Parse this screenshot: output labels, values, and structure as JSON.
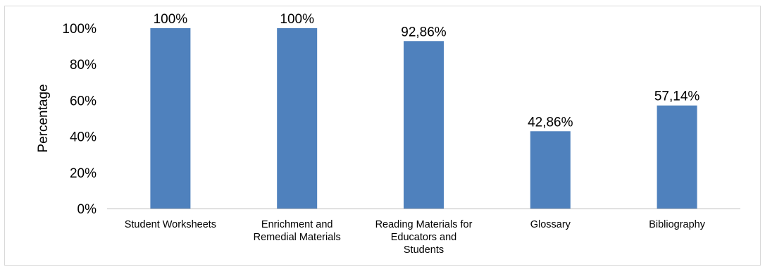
{
  "chart_data": {
    "type": "bar",
    "title": "",
    "xlabel": "",
    "ylabel": "Percentage",
    "ylim": [
      0,
      100
    ],
    "y_ticks": [
      0,
      20,
      40,
      60,
      80,
      100
    ],
    "y_tick_labels": [
      "0%",
      "20%",
      "40%",
      "60%",
      "80%",
      "100%"
    ],
    "categories": [
      [
        "Student Worksheets"
      ],
      [
        "Enrichment and",
        "Remedial Materials"
      ],
      [
        "Reading Materials for",
        "Educators and",
        "Students"
      ],
      [
        "Glossary"
      ],
      [
        "Bibliography"
      ]
    ],
    "values": [
      100,
      100,
      92.86,
      42.86,
      57.14
    ],
    "data_labels": [
      "100%",
      "100%",
      "92,86%",
      "42,86%",
      "57,14%"
    ],
    "grid": false,
    "legend": "none",
    "colors": {
      "bar": "#4f81bd",
      "axis": "#bfbfbf",
      "frame": "#d9d9d9"
    }
  }
}
